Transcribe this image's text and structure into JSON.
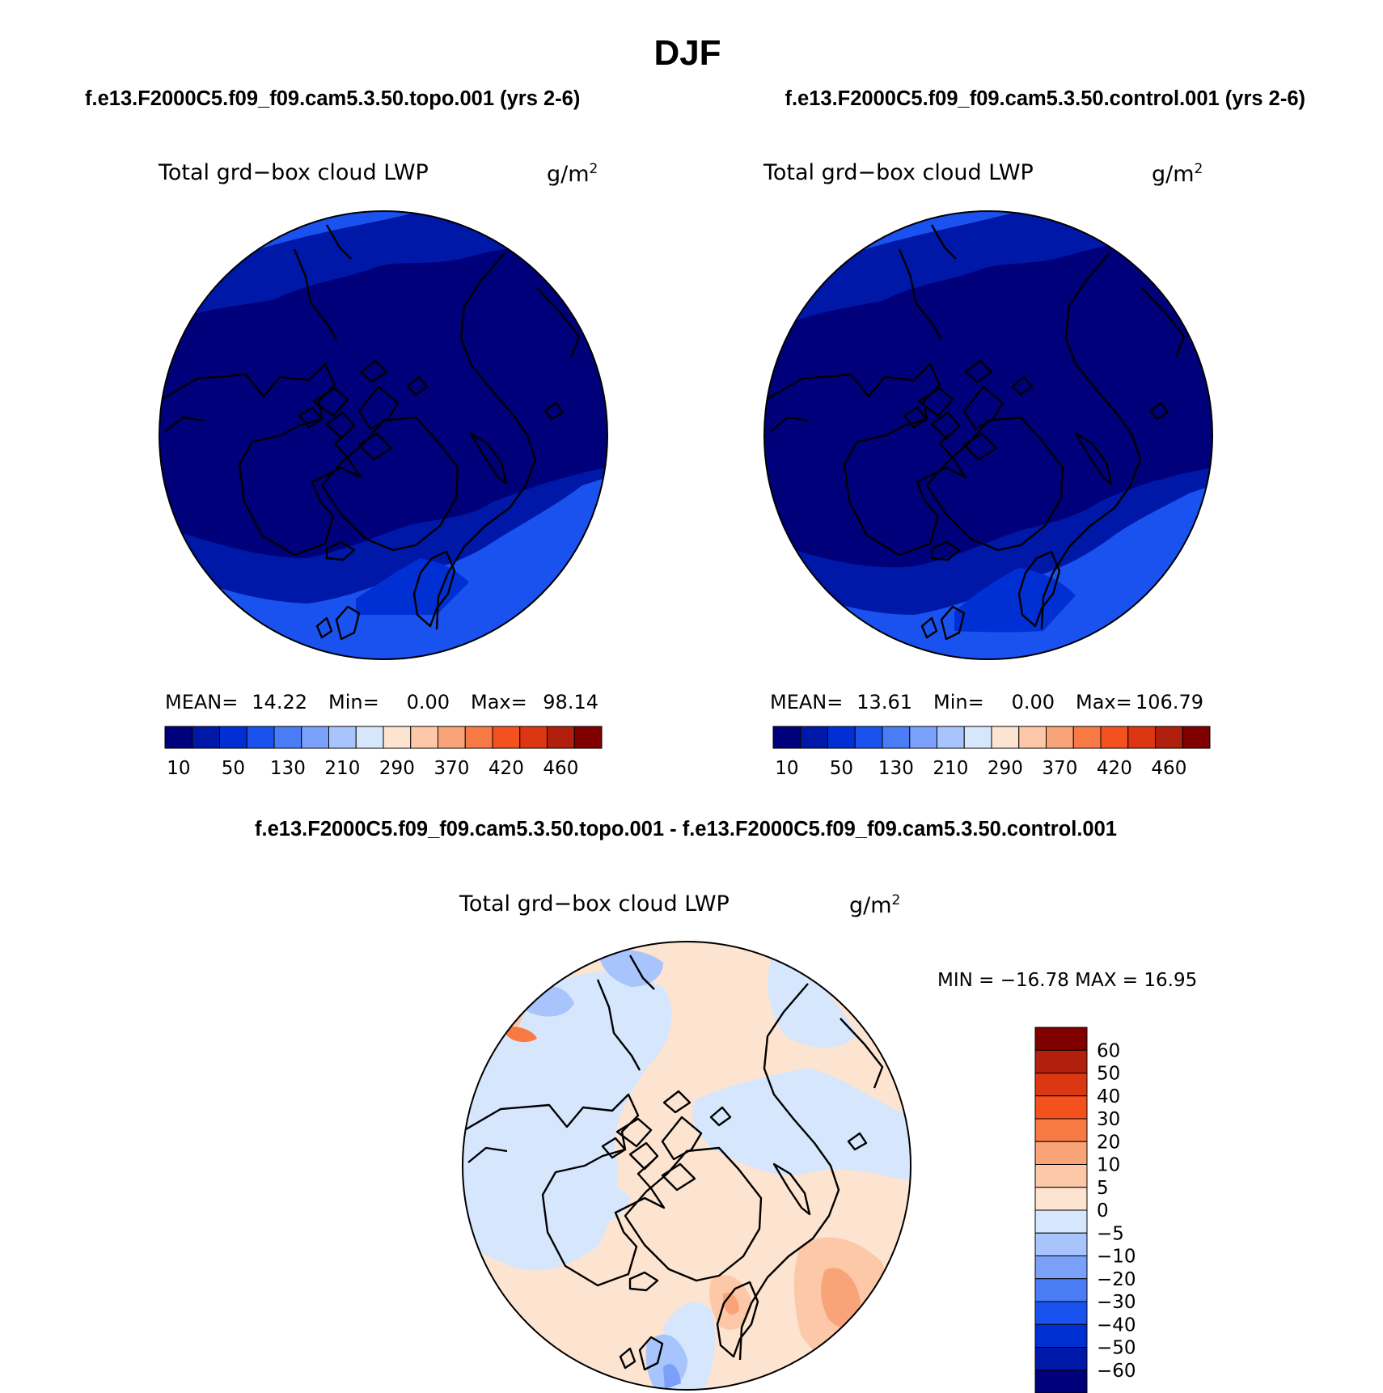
{
  "figure": {
    "title": "DJF",
    "case_a_header": "f.e13.F2000C5.f09_f09.cam5.3.50.topo.001 (yrs 2-6)",
    "case_b_header": "f.e13.F2000C5.f09_f09.cam5.3.50.control.001 (yrs 2-6)",
    "diff_header": "f.e13.F2000C5.f09_f09.cam5.3.50.topo.001 - f.e13.F2000C5.f09_f09.cam5.3.50.control.001"
  },
  "chart_data": [
    {
      "type": "heatmap",
      "projection": "north polar stereographic",
      "title": "Total grd−box cloud LWP",
      "units_base": "g/m",
      "units_exp": "2",
      "stats": {
        "mean_label": "MEAN=",
        "mean": "14.22",
        "min_label": "Min=",
        "min": "0.00",
        "max_label": "Max=",
        "max": "98.14"
      },
      "legend": {
        "orientation": "horizontal",
        "tick_labels": [
          "10",
          "50",
          "130",
          "210",
          "290",
          "370",
          "420",
          "460"
        ],
        "colors": [
          "#00007a",
          "#0018a8",
          "#0030d4",
          "#1a52f0",
          "#4a7cf6",
          "#7aa0fa",
          "#a8c4fc",
          "#d6e6fc",
          "#fde4d0",
          "#fcc8a8",
          "#f8a478",
          "#f77a44",
          "#f4511e",
          "#dc3612",
          "#b0200c",
          "#800000"
        ]
      }
    },
    {
      "type": "heatmap",
      "projection": "north polar stereographic",
      "title": "Total grd−box cloud LWP",
      "units_base": "g/m",
      "units_exp": "2",
      "stats": {
        "mean_label": "MEAN=",
        "mean": "13.61",
        "min_label": "Min=",
        "min": "0.00",
        "max_label": "Max=",
        "max": "106.79"
      },
      "legend": {
        "orientation": "horizontal",
        "tick_labels": [
          "10",
          "50",
          "130",
          "210",
          "290",
          "370",
          "420",
          "460"
        ],
        "colors": [
          "#00007a",
          "#0018a8",
          "#0030d4",
          "#1a52f0",
          "#4a7cf6",
          "#7aa0fa",
          "#a8c4fc",
          "#d6e6fc",
          "#fde4d0",
          "#fcc8a8",
          "#f8a478",
          "#f77a44",
          "#f4511e",
          "#dc3612",
          "#b0200c",
          "#800000"
        ]
      }
    },
    {
      "type": "heatmap",
      "projection": "north polar stereographic",
      "title": "Total grd−box cloud LWP",
      "units_base": "g/m",
      "units_exp": "2",
      "stats_text": "MIN = −16.78  MAX =   16.95",
      "legend": {
        "orientation": "vertical",
        "tick_labels": [
          "60",
          "50",
          "40",
          "30",
          "20",
          "10",
          "5",
          "0",
          "−5",
          "−10",
          "−20",
          "−30",
          "−40",
          "−50",
          "−60"
        ],
        "colors": [
          "#800000",
          "#b0200c",
          "#dc3612",
          "#f4511e",
          "#f77a44",
          "#f8a478",
          "#fcc8a8",
          "#fde4d0",
          "#d6e6fc",
          "#a8c4fc",
          "#7aa0fa",
          "#4a7cf6",
          "#1a52f0",
          "#0030d4",
          "#0018a8",
          "#00007a"
        ]
      }
    }
  ]
}
